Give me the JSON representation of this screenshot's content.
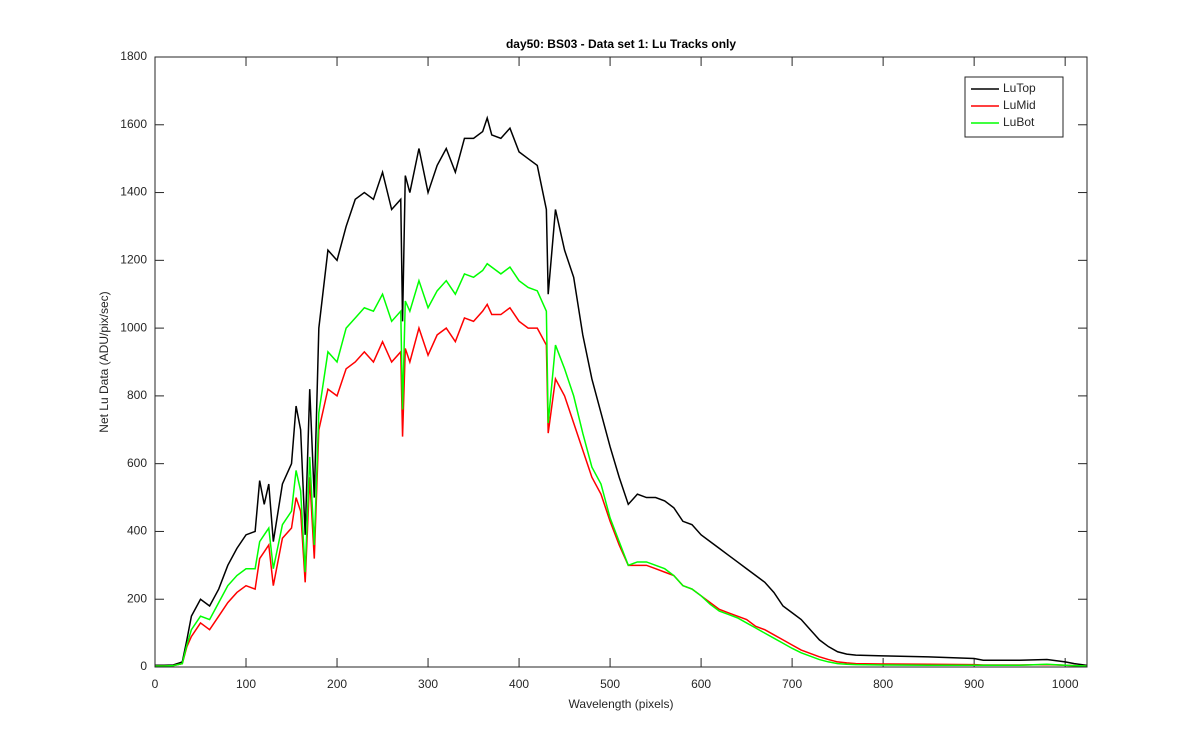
{
  "chart_data": {
    "type": "line",
    "title": "day50: BS03 - Data set 1: Lu Tracks only",
    "xlabel": "Wavelength (pixels)",
    "ylabel": "Net Lu Data (ADU/pix/sec)",
    "x": [
      0,
      10,
      20,
      30,
      35,
      40,
      50,
      60,
      70,
      80,
      90,
      100,
      110,
      115,
      120,
      125,
      130,
      140,
      150,
      155,
      160,
      165,
      170,
      175,
      180,
      190,
      200,
      210,
      220,
      230,
      240,
      250,
      260,
      270,
      272,
      275,
      280,
      290,
      300,
      310,
      320,
      330,
      340,
      350,
      360,
      365,
      370,
      380,
      390,
      400,
      410,
      420,
      430,
      432,
      440,
      450,
      460,
      470,
      480,
      490,
      500,
      510,
      520,
      530,
      540,
      550,
      560,
      570,
      580,
      590,
      600,
      610,
      620,
      630,
      640,
      650,
      660,
      670,
      680,
      690,
      700,
      710,
      720,
      730,
      740,
      750,
      760,
      770,
      800,
      850,
      900,
      910,
      950,
      980,
      1000,
      1010,
      1024
    ],
    "series": [
      {
        "name": "LuTop",
        "color": "#000000",
        "values": [
          5,
          5,
          6,
          15,
          80,
          150,
          200,
          180,
          230,
          300,
          350,
          390,
          400,
          550,
          480,
          540,
          370,
          540,
          600,
          770,
          700,
          390,
          820,
          500,
          1000,
          1230,
          1200,
          1300,
          1380,
          1400,
          1380,
          1460,
          1350,
          1380,
          1020,
          1450,
          1400,
          1530,
          1400,
          1480,
          1530,
          1460,
          1560,
          1560,
          1580,
          1620,
          1570,
          1560,
          1590,
          1520,
          1500,
          1480,
          1350,
          1100,
          1350,
          1230,
          1150,
          980,
          850,
          750,
          650,
          560,
          480,
          510,
          500,
          500,
          490,
          470,
          430,
          420,
          390,
          370,
          350,
          330,
          310,
          290,
          270,
          250,
          220,
          180,
          160,
          140,
          110,
          80,
          60,
          45,
          38,
          35,
          33,
          30,
          25,
          20,
          20,
          22,
          15,
          10,
          5
        ]
      },
      {
        "name": "LuMid",
        "color": "#ff0000",
        "values": [
          3,
          3,
          4,
          10,
          60,
          90,
          130,
          110,
          150,
          190,
          220,
          240,
          230,
          320,
          340,
          360,
          240,
          380,
          410,
          500,
          460,
          250,
          560,
          320,
          700,
          820,
          800,
          880,
          900,
          930,
          900,
          960,
          900,
          930,
          680,
          940,
          900,
          1000,
          920,
          980,
          1000,
          960,
          1030,
          1020,
          1050,
          1070,
          1040,
          1040,
          1060,
          1020,
          1000,
          1000,
          950,
          690,
          850,
          800,
          720,
          640,
          560,
          510,
          430,
          360,
          300,
          300,
          300,
          290,
          280,
          270,
          240,
          230,
          210,
          190,
          170,
          160,
          150,
          140,
          120,
          110,
          95,
          80,
          65,
          50,
          40,
          30,
          22,
          15,
          12,
          10,
          9,
          8,
          7,
          6,
          6,
          7,
          5,
          4,
          3
        ]
      },
      {
        "name": "LuBot",
        "color": "#00ff00",
        "values": [
          3,
          3,
          4,
          10,
          65,
          110,
          150,
          140,
          190,
          240,
          270,
          290,
          290,
          370,
          390,
          410,
          290,
          420,
          460,
          580,
          520,
          280,
          620,
          360,
          750,
          930,
          900,
          1000,
          1030,
          1060,
          1050,
          1100,
          1020,
          1050,
          760,
          1080,
          1050,
          1140,
          1060,
          1110,
          1140,
          1100,
          1160,
          1150,
          1170,
          1190,
          1180,
          1160,
          1180,
          1140,
          1120,
          1110,
          1050,
          720,
          950,
          880,
          800,
          690,
          590,
          540,
          440,
          370,
          300,
          310,
          310,
          300,
          290,
          270,
          240,
          230,
          210,
          185,
          165,
          155,
          145,
          130,
          115,
          100,
          85,
          70,
          55,
          42,
          32,
          22,
          15,
          10,
          8,
          7,
          6,
          5,
          5,
          5,
          5,
          8,
          5,
          4,
          3
        ]
      }
    ],
    "xlim": [
      0,
      1024
    ],
    "ylim": [
      0,
      1800
    ],
    "xticks": [
      0,
      100,
      200,
      300,
      400,
      500,
      600,
      700,
      800,
      900,
      1000
    ],
    "yticks": [
      0,
      200,
      400,
      600,
      800,
      1000,
      1200,
      1400,
      1600,
      1800
    ],
    "grid": false,
    "legend": "northeast"
  }
}
